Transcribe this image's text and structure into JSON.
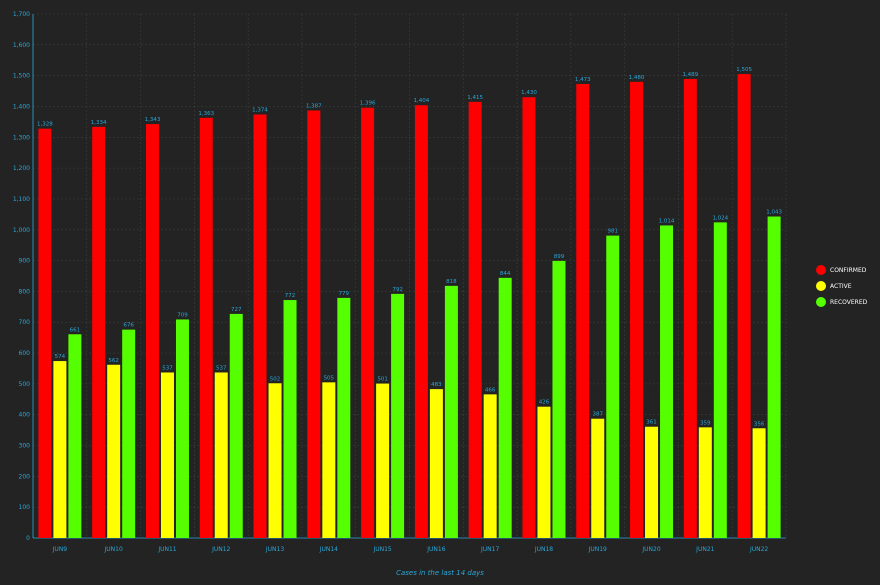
{
  "chart_data": {
    "type": "bar",
    "title": "",
    "xlabel": "Cases in the last 14 days",
    "ylabel": "",
    "ylim": [
      0,
      1700
    ],
    "ytick_step": 100,
    "grid": true,
    "legend_position": "right",
    "categories": [
      "JUN9",
      "JUN10",
      "JUN11",
      "JUN12",
      "JUN13",
      "JUN14",
      "JUN15",
      "JUN16",
      "JUN17",
      "JUN18",
      "JUN19",
      "JUN20",
      "JUN21",
      "JUN22"
    ],
    "series": [
      {
        "name": "CONFIRMED",
        "color": "#ff0000",
        "values": [
          1328,
          1334,
          1343,
          1363,
          1374,
          1387,
          1396,
          1404,
          1415,
          1430,
          1473,
          1480,
          1489,
          1505
        ],
        "labels": [
          "1,328",
          "1,334",
          "1,343",
          "1,363",
          "1,374",
          "1,387",
          "1,396",
          "1,404",
          "1,415",
          "1,430",
          "1,473",
          "1,480",
          "1,489",
          "1,505"
        ]
      },
      {
        "name": "ACTIVE",
        "color": "#ffff00",
        "values": [
          574,
          562,
          537,
          537,
          502,
          505,
          501,
          483,
          466,
          426,
          387,
          361,
          359,
          356
        ],
        "labels": [
          "574",
          "562",
          "537",
          "537",
          "502",
          "505",
          "501",
          "483",
          "466",
          "426",
          "387",
          "361",
          "359",
          "356"
        ]
      },
      {
        "name": "RECOVERED",
        "color": "#55ff00",
        "values": [
          661,
          676,
          709,
          727,
          772,
          779,
          792,
          818,
          844,
          899,
          981,
          1014,
          1024,
          1043
        ],
        "labels": [
          "661",
          "676",
          "709",
          "727",
          "772",
          "779",
          "792",
          "818",
          "844",
          "899",
          "981",
          "1,014",
          "1,024",
          "1,043"
        ]
      }
    ]
  },
  "colors": {
    "background": "#232323",
    "axis_text": "#2aa7d8",
    "grid": "#3a3f3a"
  }
}
